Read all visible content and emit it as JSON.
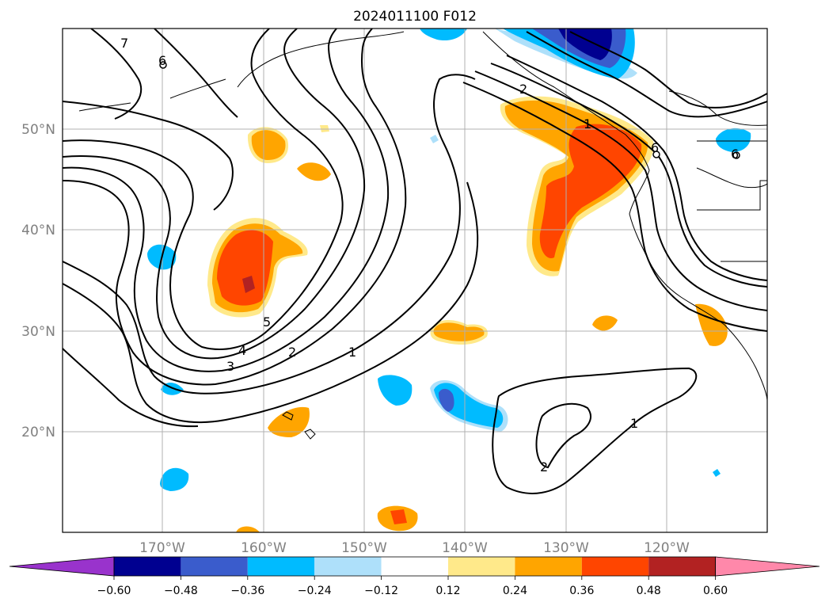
{
  "title": "2024011100 F012",
  "lat_labels": [
    "50°N",
    "40°N",
    "30°N",
    "20°N"
  ],
  "lon_labels": [
    "170°W",
    "160°W",
    "150°W",
    "140°W",
    "130°W",
    "120°W"
  ],
  "colorbar": {
    "ticks": [
      "−0.60",
      "−0.48",
      "−0.36",
      "−0.24",
      "−0.12",
      "0.12",
      "0.24",
      "0.36",
      "0.48",
      "0.60"
    ],
    "colors": {
      "under": "#9933cc",
      "b1": "#000090",
      "b2": "#3a5ccc",
      "b3": "#00bbff",
      "b4": "#aee0fa",
      "b5": "#ffffff",
      "b6": "#ffe98a",
      "b7": "#ffa500",
      "b8": "#ff4500",
      "b9": "#b22222",
      "over": "#ff88aa"
    }
  },
  "contour_labels": [
    "7",
    "6",
    "5",
    "4",
    "3",
    "2",
    "1",
    "2",
    "1",
    "2",
    "1",
    "6",
    "6"
  ]
}
